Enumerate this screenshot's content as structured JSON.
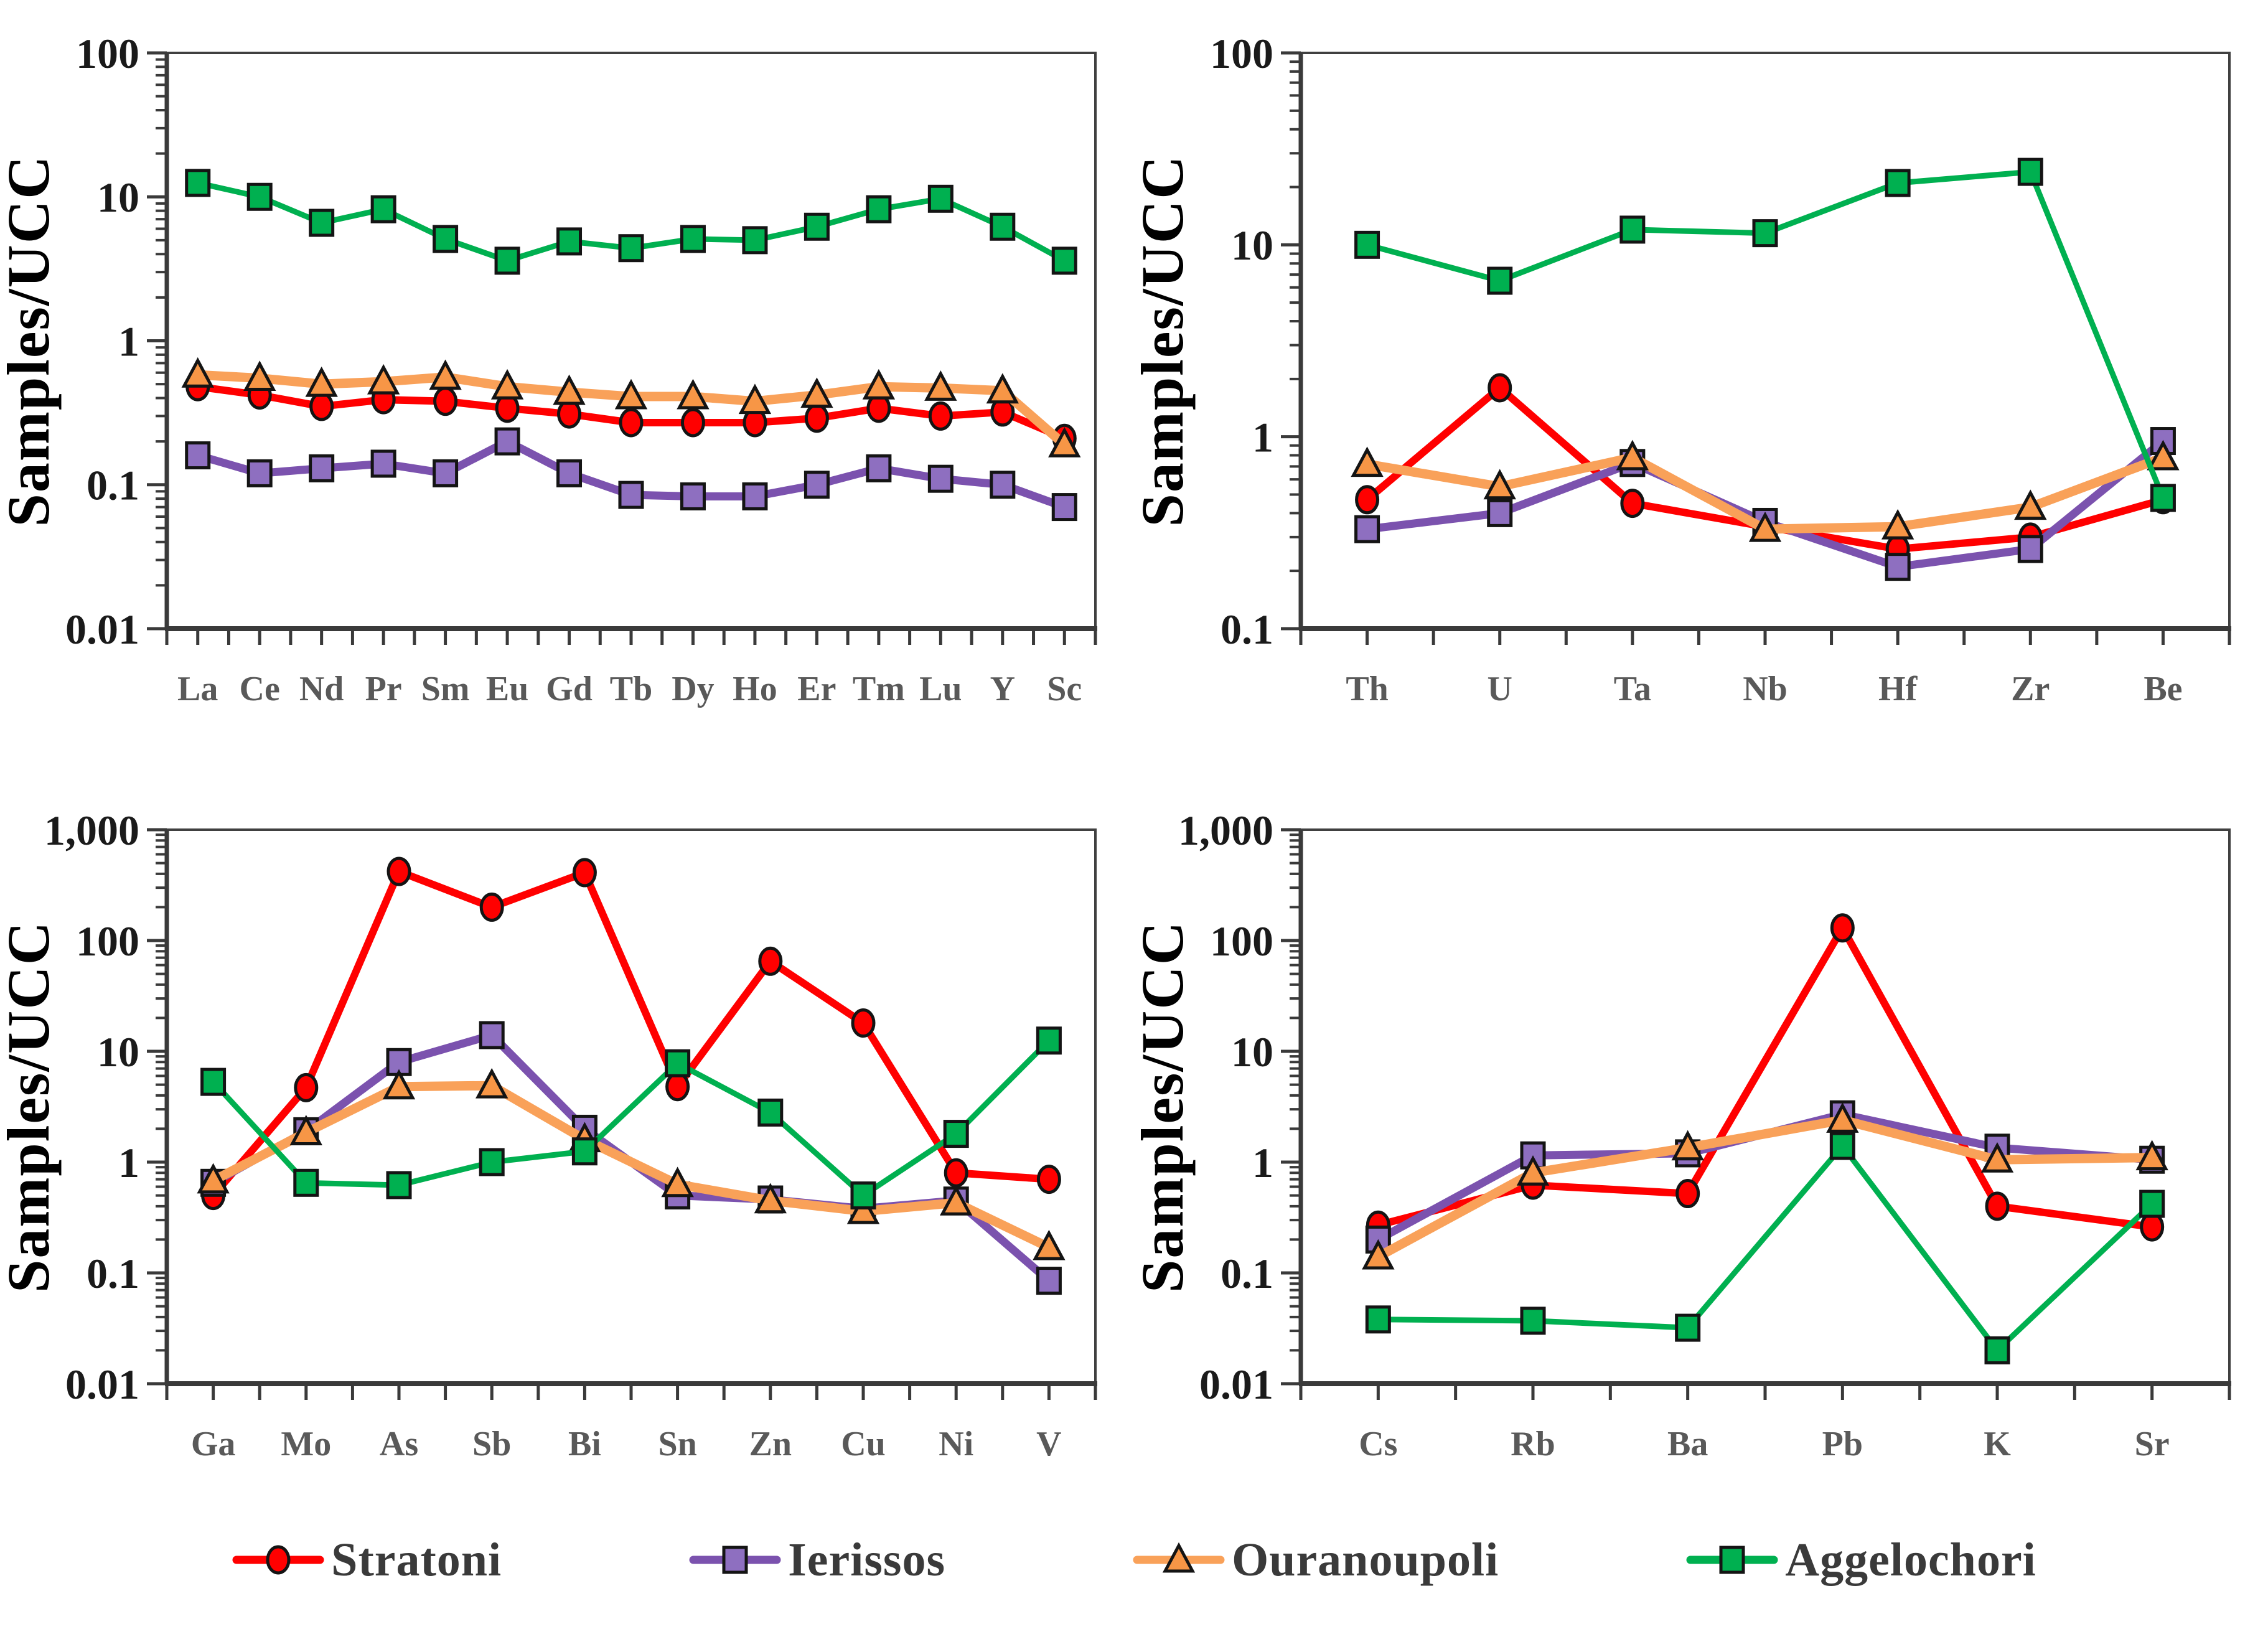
{
  "ylabel": "Samples/UCC",
  "colors": {
    "background": "#FFFFFF",
    "axis": "#3A3A3A",
    "border": "#404040",
    "tick_label": "#1A1A1A",
    "category_label": "#595959",
    "legend_text": "#3A3A3A",
    "stratoni": "#FF0000",
    "ierissos_line": "#7B52AE",
    "ierissos_fill": "#8E6FC0",
    "ouranoupoli_line": "#F9A159",
    "ouranoupoli_fill": "#F79646",
    "aggelochori": "#00B050"
  },
  "legend": {
    "items": [
      {
        "label": "Stratoni",
        "series": "Stratoni"
      },
      {
        "label": "Ierissos",
        "series": "Ierissos"
      },
      {
        "label": "Ouranoupoli",
        "series": "Ouranoupoli"
      },
      {
        "label": "Aggelochori",
        "series": "Aggelochori"
      }
    ]
  },
  "series_meta": {
    "Stratoni": {
      "marker": "circle",
      "line": "#FF0000",
      "fill": "#FF0000",
      "width": 12
    },
    "Ierissos": {
      "marker": "square",
      "line": "#7B52AE",
      "fill": "#8E6FC0",
      "width": 13
    },
    "Ouranoupoli": {
      "marker": "triangle",
      "line": "#F9A159",
      "fill": "#F79646",
      "width": 15
    },
    "Aggelochori": {
      "marker": "square",
      "line": "#00B050",
      "fill": "#00B050",
      "width": 9
    }
  },
  "chart_data": [
    {
      "type": "line",
      "log_scale": true,
      "title": "",
      "xlabel": "",
      "ylabel": "Samples/UCC",
      "legend_position": "bottom-shared",
      "grid": false,
      "categories": [
        "La",
        "Ce",
        "Nd",
        "Pr",
        "Sm",
        "Eu",
        "Gd",
        "Tb",
        "Dy",
        "Ho",
        "Er",
        "Tm",
        "Lu",
        "Y",
        "Sc"
      ],
      "ylim": [
        0.01,
        100
      ],
      "yticks": [
        "0.01",
        "0.1",
        "1",
        "10",
        "100"
      ],
      "series": [
        {
          "name": "Stratoni",
          "values": [
            0.48,
            0.42,
            0.35,
            0.39,
            0.38,
            0.34,
            0.31,
            0.27,
            0.27,
            0.27,
            0.29,
            0.34,
            0.3,
            0.32,
            0.21
          ]
        },
        {
          "name": "Ierissos",
          "values": [
            0.16,
            0.12,
            0.13,
            0.14,
            0.12,
            0.2,
            0.12,
            0.085,
            0.083,
            0.083,
            0.1,
            0.13,
            0.11,
            0.1,
            0.07
          ]
        },
        {
          "name": "Ouranoupoli",
          "values": [
            0.58,
            0.55,
            0.5,
            0.52,
            0.56,
            0.48,
            0.44,
            0.41,
            0.41,
            0.38,
            0.42,
            0.48,
            0.47,
            0.45,
            0.19
          ]
        },
        {
          "name": "Aggelochori",
          "values": [
            12.5,
            10,
            6.6,
            8.2,
            5.1,
            3.6,
            4.9,
            4.4,
            5.1,
            5.0,
            6.2,
            8.2,
            9.7,
            6.2,
            3.6
          ]
        }
      ]
    },
    {
      "type": "line",
      "log_scale": true,
      "title": "",
      "xlabel": "",
      "ylabel": "Samples/UCC",
      "legend_position": "bottom-shared",
      "grid": false,
      "categories": [
        "Th",
        "U",
        "Ta",
        "Nb",
        "Hf",
        "Zr",
        "Be"
      ],
      "ylim": [
        0.1,
        100
      ],
      "yticks": [
        "0.1",
        "1",
        "10",
        "100"
      ],
      "series": [
        {
          "name": "Stratoni",
          "values": [
            0.47,
            1.8,
            0.45,
            0.34,
            0.26,
            0.3,
            0.47
          ]
        },
        {
          "name": "Ierissos",
          "values": [
            0.33,
            0.4,
            0.73,
            0.36,
            0.21,
            0.26,
            0.95
          ]
        },
        {
          "name": "Ouranoupoli",
          "values": [
            0.72,
            0.55,
            0.78,
            0.33,
            0.34,
            0.43,
            0.78
          ]
        },
        {
          "name": "Aggelochori",
          "values": [
            10,
            6.5,
            12,
            11.5,
            21,
            24,
            0.48
          ]
        }
      ]
    },
    {
      "type": "line",
      "log_scale": true,
      "title": "",
      "xlabel": "",
      "ylabel": "Samples/UCC",
      "legend_position": "bottom-shared",
      "grid": false,
      "categories": [
        "Ga",
        "Mo",
        "As",
        "Sb",
        "Bi",
        "Sn",
        "Zn",
        "Cu",
        "Ni",
        "V"
      ],
      "ylim": [
        0.01,
        1000
      ],
      "yticks": [
        "0.01",
        "0.1",
        "1",
        "10",
        "100",
        "1,000"
      ],
      "series": [
        {
          "name": "Stratoni",
          "values": [
            0.5,
            4.7,
            420,
            200,
            410,
            4.8,
            65,
            18,
            0.8,
            0.7
          ]
        },
        {
          "name": "Ierissos",
          "values": [
            0.65,
            1.9,
            8.0,
            14,
            2.0,
            0.5,
            0.46,
            0.38,
            0.45,
            0.085
          ]
        },
        {
          "name": "Ouranoupoli",
          "values": [
            0.68,
            1.85,
            4.8,
            4.9,
            1.6,
            0.63,
            0.45,
            0.36,
            0.43,
            0.17
          ]
        },
        {
          "name": "Aggelochori",
          "values": [
            5.3,
            0.65,
            0.62,
            1.0,
            1.25,
            7.8,
            2.8,
            0.5,
            1.8,
            12.5
          ]
        }
      ]
    },
    {
      "type": "line",
      "log_scale": true,
      "title": "",
      "xlabel": "",
      "ylabel": "Samples/UCC",
      "legend_position": "bottom-shared",
      "grid": false,
      "categories": [
        "Cs",
        "Rb",
        "Ba",
        "Pb",
        "K",
        "Sr"
      ],
      "ylim": [
        0.01,
        1000
      ],
      "yticks": [
        "0.01",
        "0.1",
        "1",
        "10",
        "100",
        "1,000"
      ],
      "series": [
        {
          "name": "Stratoni",
          "values": [
            0.27,
            0.62,
            0.52,
            130,
            0.4,
            0.26
          ]
        },
        {
          "name": "Ierissos",
          "values": [
            0.2,
            1.15,
            1.2,
            2.7,
            1.35,
            1.05
          ]
        },
        {
          "name": "Ouranoupoli",
          "values": [
            0.14,
            0.8,
            1.35,
            2.4,
            1.05,
            1.1
          ]
        },
        {
          "name": "Aggelochori",
          "values": [
            0.038,
            0.037,
            0.032,
            1.4,
            0.02,
            0.42
          ]
        }
      ]
    }
  ]
}
